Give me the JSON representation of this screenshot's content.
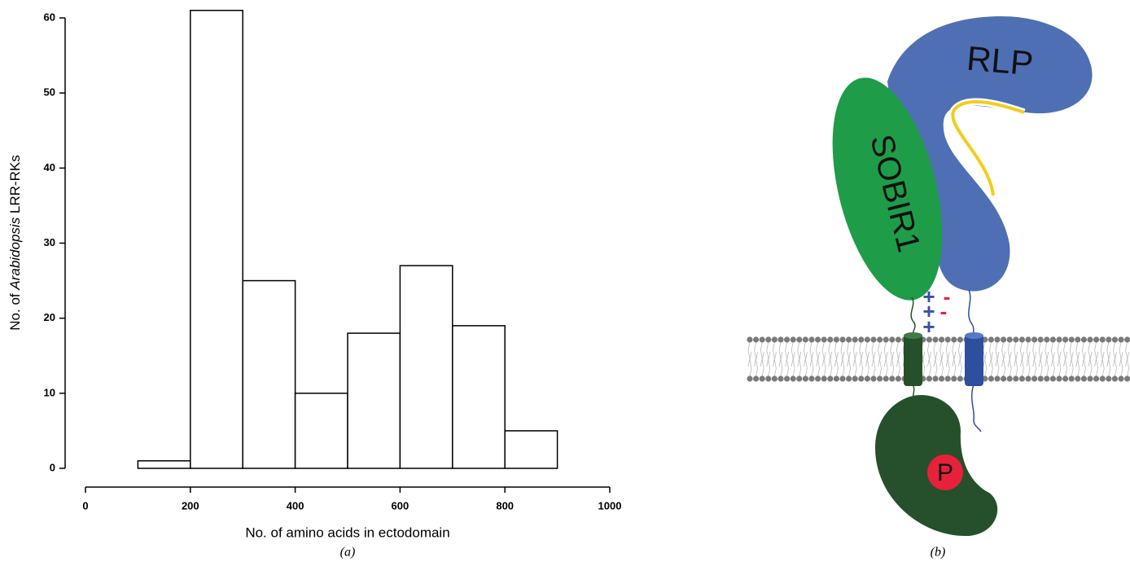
{
  "chart_data": {
    "type": "histogram",
    "bins": [
      100,
      200,
      300,
      400,
      500,
      600,
      700,
      800,
      900
    ],
    "counts": [
      1,
      61,
      25,
      10,
      18,
      27,
      19,
      5
    ],
    "color": "#ffffff",
    "xlim": [
      0,
      1000
    ],
    "xticks": [
      0,
      200,
      400,
      600,
      800,
      1000
    ],
    "ylim": [
      0,
      62
    ],
    "yticks": [
      0,
      10,
      20,
      30,
      40,
      50,
      60
    ],
    "xlabel": "No. of amino acids in ectodomain",
    "ylabel": {
      "before": "No. of",
      "italic": "Arabidopsis",
      "after": "LRR-RKs"
    },
    "caption": "(a)"
  },
  "diagram": {
    "caption": "(b)",
    "labels": {
      "rlp": "RLP",
      "sobir1": "SOBIR1",
      "phospho": "P"
    },
    "plus_signs": [
      "+",
      "+",
      "+"
    ],
    "minus_signs": [
      "-",
      "-"
    ]
  }
}
